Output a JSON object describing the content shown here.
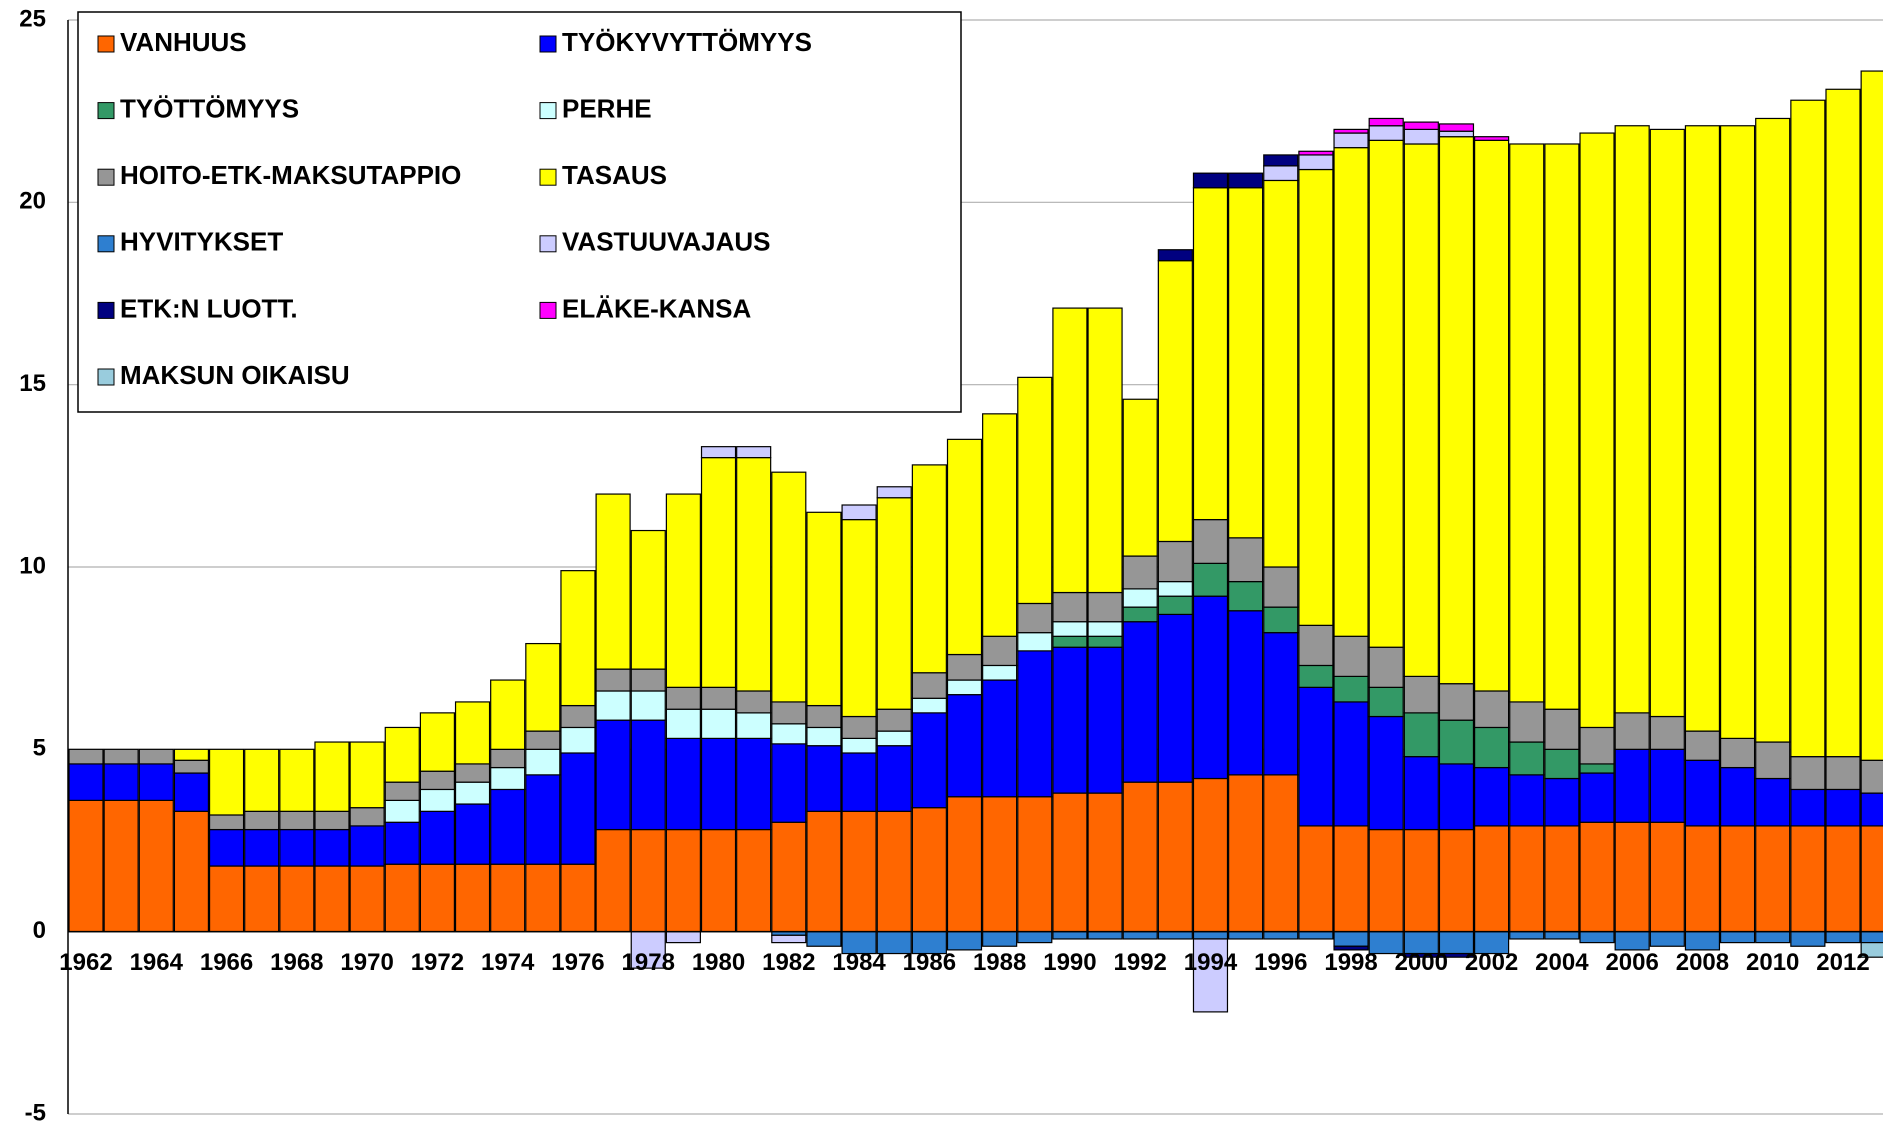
{
  "chart_data": {
    "type": "stacked_bar",
    "categories": [
      "1962",
      null,
      "1964",
      null,
      "1966",
      null,
      "1968",
      null,
      "1970",
      null,
      "1972",
      null,
      "1974",
      null,
      "1976",
      null,
      "1978",
      null,
      "1980",
      null,
      "1982",
      null,
      "1984",
      null,
      "1986",
      null,
      "1988",
      null,
      "1990",
      null,
      "1992",
      null,
      "1994",
      null,
      "1996",
      null,
      "1998",
      null,
      "2000",
      null,
      "2002",
      null,
      "2004",
      null,
      "2006",
      null,
      "2008",
      null,
      "2010",
      null,
      "2012",
      null
    ],
    "ylim": [
      -5,
      25
    ],
    "yticks": [
      -5,
      0,
      5,
      10,
      15,
      20,
      25
    ],
    "grid": true,
    "legend": "upper left",
    "series": [
      {
        "name": "VANHUUS",
        "color": "#ff6600",
        "values": [
          3.6,
          3.6,
          3.6,
          3.3,
          1.8,
          1.8,
          1.8,
          1.8,
          1.8,
          1.85,
          1.85,
          1.85,
          1.85,
          1.85,
          1.85,
          2.8,
          2.8,
          2.8,
          2.8,
          2.8,
          3.0,
          3.3,
          3.3,
          3.3,
          3.4,
          3.7,
          3.7,
          3.7,
          3.8,
          3.8,
          4.1,
          4.1,
          4.2,
          4.3,
          4.3,
          2.9,
          2.9,
          2.8,
          2.8,
          2.8,
          2.9,
          2.9,
          2.9,
          3.0,
          3.0,
          3.0,
          2.9,
          2.9,
          2.9,
          2.9,
          2.9,
          2.9
        ]
      },
      {
        "name": "TYÖKYVYTTÖMYYS",
        "color": "#0000ff",
        "values": [
          1.0,
          1.0,
          1.0,
          1.05,
          1.0,
          1.0,
          1.0,
          1.0,
          1.1,
          1.15,
          1.45,
          1.65,
          2.05,
          2.45,
          3.05,
          3.0,
          3.0,
          2.5,
          2.5,
          2.5,
          2.15,
          1.8,
          1.6,
          1.8,
          2.6,
          2.8,
          3.2,
          4.0,
          4.0,
          4.0,
          4.4,
          4.6,
          5.0,
          4.5,
          3.9,
          3.8,
          3.4,
          3.1,
          2.0,
          1.8,
          1.6,
          1.4,
          1.3,
          1.35,
          2.0,
          2.0,
          1.8,
          1.6,
          1.3,
          1.0,
          1.0,
          0.9
        ]
      },
      {
        "name": "TYÖTTÖMYYS",
        "color": "#339966",
        "values": [
          0,
          0,
          0,
          0,
          0,
          0,
          0,
          0,
          0,
          0,
          0,
          0,
          0,
          0,
          0,
          0,
          0,
          0,
          0,
          0,
          0,
          0,
          0,
          0,
          0,
          0,
          0,
          0,
          0.3,
          0.3,
          0.4,
          0.5,
          0.9,
          0.8,
          0.7,
          0.6,
          0.7,
          0.8,
          1.2,
          1.2,
          1.1,
          0.9,
          0.8,
          0.25,
          0,
          0,
          0,
          0,
          0,
          0,
          0,
          0
        ]
      },
      {
        "name": "PERHE",
        "color": "#ccffff",
        "values": [
          0,
          0,
          0,
          0,
          0,
          0,
          0,
          0,
          0,
          0.6,
          0.6,
          0.6,
          0.6,
          0.7,
          0.7,
          0.8,
          0.8,
          0.8,
          0.8,
          0.7,
          0.55,
          0.5,
          0.4,
          0.4,
          0.4,
          0.4,
          0.4,
          0.5,
          0.4,
          0.4,
          0.5,
          0.4,
          0,
          0,
          0,
          0,
          0,
          0,
          0,
          0,
          0,
          0,
          0,
          0,
          0,
          0,
          0,
          0,
          0,
          0,
          0,
          0
        ]
      },
      {
        "name": "HOITO-ETK-MAKSUTAPPIO",
        "color": "#969696",
        "values": [
          0.4,
          0.4,
          0.4,
          0.35,
          0.4,
          0.5,
          0.5,
          0.5,
          0.5,
          0.5,
          0.5,
          0.5,
          0.5,
          0.5,
          0.6,
          0.6,
          0.6,
          0.6,
          0.6,
          0.6,
          0.6,
          0.6,
          0.6,
          0.6,
          0.7,
          0.7,
          0.8,
          0.8,
          0.8,
          0.8,
          0.9,
          1.1,
          1.2,
          1.2,
          1.1,
          1.1,
          1.1,
          1.1,
          1.0,
          1.0,
          1.0,
          1.1,
          1.1,
          1.0,
          1.0,
          0.9,
          0.8,
          0.8,
          1.0,
          0.9,
          0.9,
          0.9
        ]
      },
      {
        "name": "TASAUS",
        "color": "#ffff00",
        "values": [
          0,
          0,
          0,
          0.3,
          1.8,
          1.7,
          1.7,
          1.9,
          1.8,
          1.5,
          1.6,
          1.7,
          1.9,
          2.4,
          3.7,
          4.8,
          3.8,
          5.3,
          6.3,
          6.4,
          6.3,
          5.3,
          5.4,
          5.8,
          5.7,
          5.9,
          6.1,
          6.2,
          7.8,
          7.8,
          4.3,
          7.7,
          9.1,
          9.6,
          10.6,
          12.5,
          13.4,
          13.9,
          14.6,
          15.0,
          15.1,
          15.3,
          15.5,
          16.3,
          16.1,
          16.1,
          16.6,
          16.8,
          17.1,
          18.0,
          18.3,
          18.9
        ]
      },
      {
        "name": "HYVITYKSET",
        "color": "#2e7fd0",
        "values": [
          0,
          0,
          0,
          0,
          0,
          0,
          0,
          0,
          0,
          0,
          0,
          0,
          0,
          0,
          0,
          0,
          0,
          0,
          0,
          0,
          -0.1,
          -0.4,
          -0.6,
          -0.6,
          -0.6,
          -0.5,
          -0.4,
          -0.3,
          -0.2,
          -0.2,
          -0.2,
          -0.2,
          -0.2,
          -0.2,
          -0.2,
          -0.2,
          -0.4,
          -0.6,
          -0.6,
          -0.6,
          -0.6,
          -0.2,
          -0.2,
          -0.3,
          -0.5,
          -0.4,
          -0.5,
          -0.3,
          -0.3,
          -0.4,
          -0.3,
          -0.3
        ]
      },
      {
        "name": "VASTUUVAJAUS",
        "color": "#ccccff",
        "values": [
          0,
          0,
          0,
          0,
          0,
          0,
          0,
          0,
          0,
          0,
          0,
          0,
          0,
          0,
          0,
          0,
          -1.0,
          -0.3,
          0.3,
          0.3,
          -0.2,
          0,
          0.4,
          0.3,
          0,
          0,
          0,
          0,
          0,
          0,
          0,
          0,
          -2.0,
          0,
          0.4,
          0.4,
          0.4,
          0.4,
          0.4,
          0.15,
          0,
          0,
          0,
          0,
          0,
          0,
          0,
          0,
          0,
          0,
          0,
          0
        ]
      },
      {
        "name": "ETK:N LUOTT.",
        "color": "#000080",
        "values": [
          0,
          0,
          0,
          0,
          0,
          0,
          0,
          0,
          0,
          0,
          0,
          0,
          0,
          0,
          0,
          0,
          0,
          0,
          0,
          0,
          0,
          0,
          0,
          0,
          0,
          0,
          0,
          0,
          0,
          0,
          0,
          0.3,
          0.4,
          0.4,
          0.3,
          0,
          -0.1,
          0,
          -0.1,
          -0.1,
          0,
          0,
          0,
          0,
          0,
          0,
          0,
          0,
          0,
          0,
          0,
          0
        ]
      },
      {
        "name": "ELÄKE-KANSA",
        "color": "#ff00ff",
        "values": [
          0,
          0,
          0,
          0,
          0,
          0,
          0,
          0,
          0,
          0,
          0,
          0,
          0,
          0,
          0,
          0,
          0,
          0,
          0,
          0,
          0,
          0,
          0,
          0,
          0,
          0,
          0,
          0,
          0,
          0,
          0,
          0,
          0,
          0,
          0,
          0.1,
          0.1,
          0.2,
          0.2,
          0.2,
          0.1,
          0,
          0,
          0,
          0,
          0,
          0,
          0,
          0,
          0,
          0,
          0
        ]
      },
      {
        "name": "MAKSUN OIKAISU",
        "color": "#99ccdd",
        "values": [
          0,
          0,
          0,
          0,
          0,
          0,
          0,
          0,
          0,
          0,
          0,
          0,
          0,
          0,
          0,
          0,
          0,
          0,
          0,
          0,
          0,
          0,
          0,
          0,
          0,
          0,
          0,
          0,
          0,
          0,
          0,
          0,
          0,
          0,
          0,
          0,
          0,
          0,
          0,
          0,
          0,
          0,
          0,
          0,
          0,
          0,
          0,
          0,
          0,
          0,
          0,
          -0.4
        ]
      }
    ]
  }
}
